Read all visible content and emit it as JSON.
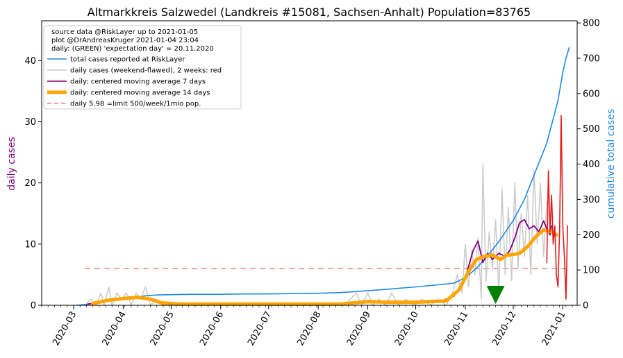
{
  "chart_data": {
    "type": "line",
    "title": "Altmarkkreis Salzwedel (Landkreis #15081, Sachsen-Anhalt) Population=83765",
    "ylabel_left": "daily cases",
    "ylabel_right": "cumulative total cases",
    "left_ylim": [
      0,
      46.5
    ],
    "right_ylim": [
      0,
      806
    ],
    "left_yticks": [
      "0",
      "10",
      "20",
      "30",
      "40"
    ],
    "right_yticks": [
      "0",
      "100",
      "200",
      "300",
      "400",
      "500",
      "600",
      "700",
      "800"
    ],
    "x_range": [
      "2020-02-10",
      "2021-01-10"
    ],
    "x_ticks": [
      "2020-03",
      "2020-04",
      "2020-05",
      "2020-06",
      "2020-07",
      "2020-08",
      "2020-09",
      "2020-10",
      "2020-11",
      "2020-12",
      "2021-01"
    ],
    "info_lines": [
      "source data @RiskLayer up to 2021-01-05",
      "plot @DrAndreasKruger 2021-01-04 23:04",
      "daily: (GREEN) 'expectation day' = 20.11.2020"
    ],
    "legend": [
      {
        "label": "total cases reported at RiskLayer",
        "color": "#1e88e5",
        "style": "line"
      },
      {
        "label": "daily cases (weekend-flawed), 2 weeks: red",
        "color": "#cccccc",
        "style": "line"
      },
      {
        "label": "daily: centered moving average 7 days",
        "color": "#800080",
        "style": "line"
      },
      {
        "label": "daily: centered moving average 14 days",
        "color": "#ffa500",
        "style": "thick"
      },
      {
        "label": "daily 5.98 =limit 500/week/1mio pop.",
        "color": "#f08080",
        "style": "dashed"
      }
    ],
    "limit_value": 5.98,
    "limit_range": [
      "2020-03-08",
      "2021-01-05"
    ],
    "expectation_day": "2020-11-20",
    "series": [
      {
        "name": "total cases reported at RiskLayer",
        "axis": "right",
        "color": "#1e88e5",
        "points": [
          [
            "2020-03-03",
            0
          ],
          [
            "2020-03-10",
            3
          ],
          [
            "2020-03-17",
            8
          ],
          [
            "2020-03-24",
            14
          ],
          [
            "2020-04-01",
            18
          ],
          [
            "2020-04-08",
            22
          ],
          [
            "2020-04-15",
            27
          ],
          [
            "2020-04-22",
            29
          ],
          [
            "2020-05-01",
            30
          ],
          [
            "2020-05-15",
            31
          ],
          [
            "2020-06-01",
            31
          ],
          [
            "2020-06-15",
            32
          ],
          [
            "2020-07-01",
            32
          ],
          [
            "2020-07-15",
            33
          ],
          [
            "2020-08-01",
            34
          ],
          [
            "2020-08-15",
            36
          ],
          [
            "2020-09-01",
            41
          ],
          [
            "2020-09-15",
            46
          ],
          [
            "2020-10-01",
            52
          ],
          [
            "2020-10-15",
            58
          ],
          [
            "2020-10-25",
            63
          ],
          [
            "2020-11-01",
            78
          ],
          [
            "2020-11-08",
            105
          ],
          [
            "2020-11-15",
            140
          ],
          [
            "2020-11-22",
            180
          ],
          [
            "2020-12-01",
            240
          ],
          [
            "2020-12-08",
            300
          ],
          [
            "2020-12-15",
            380
          ],
          [
            "2020-12-22",
            460
          ],
          [
            "2020-12-29",
            580
          ],
          [
            "2021-01-01",
            660
          ],
          [
            "2021-01-03",
            700
          ],
          [
            "2021-01-05",
            730
          ]
        ]
      },
      {
        "name": "daily cases (weekend-flawed), 2 weeks: red",
        "axis": "left",
        "color": "#cccccc",
        "points": [
          [
            "2020-03-08",
            0
          ],
          [
            "2020-03-12",
            1
          ],
          [
            "2020-03-15",
            0
          ],
          [
            "2020-03-18",
            2
          ],
          [
            "2020-03-20",
            0
          ],
          [
            "2020-03-23",
            3
          ],
          [
            "2020-03-25",
            0
          ],
          [
            "2020-03-28",
            2
          ],
          [
            "2020-03-31",
            1
          ],
          [
            "2020-04-03",
            2
          ],
          [
            "2020-04-06",
            0
          ],
          [
            "2020-04-09",
            2
          ],
          [
            "2020-04-12",
            1
          ],
          [
            "2020-04-15",
            3
          ],
          [
            "2020-04-18",
            0
          ],
          [
            "2020-04-22",
            1
          ],
          [
            "2020-04-26",
            0
          ],
          [
            "2020-05-05",
            0
          ],
          [
            "2020-08-18",
            0
          ],
          [
            "2020-08-21",
            1
          ],
          [
            "2020-08-25",
            2
          ],
          [
            "2020-08-28",
            0
          ],
          [
            "2020-09-01",
            2
          ],
          [
            "2020-09-04",
            0
          ],
          [
            "2020-09-08",
            1
          ],
          [
            "2020-09-12",
            0
          ],
          [
            "2020-09-16",
            2
          ],
          [
            "2020-09-20",
            0
          ],
          [
            "2020-09-25",
            1
          ],
          [
            "2020-09-30",
            0
          ],
          [
            "2020-10-05",
            1
          ],
          [
            "2020-10-10",
            0
          ],
          [
            "2020-10-15",
            1
          ],
          [
            "2020-10-20",
            0
          ],
          [
            "2020-10-24",
            2
          ],
          [
            "2020-10-27",
            5
          ],
          [
            "2020-10-30",
            2
          ],
          [
            "2020-11-01",
            10
          ],
          [
            "2020-11-03",
            3
          ],
          [
            "2020-11-05",
            9
          ],
          [
            "2020-11-07",
            5
          ],
          [
            "2020-11-09",
            11
          ],
          [
            "2020-11-11",
            1
          ],
          [
            "2020-11-12",
            23
          ],
          [
            "2020-11-14",
            4
          ],
          [
            "2020-11-16",
            12
          ],
          [
            "2020-11-18",
            6
          ],
          [
            "2020-11-20",
            14
          ],
          [
            "2020-11-22",
            2
          ],
          [
            "2020-11-24",
            19
          ],
          [
            "2020-11-26",
            5
          ],
          [
            "2020-11-28",
            16
          ],
          [
            "2020-11-30",
            4
          ],
          [
            "2020-12-02",
            20
          ],
          [
            "2020-12-04",
            6
          ],
          [
            "2020-12-06",
            15
          ],
          [
            "2020-12-08",
            8
          ],
          [
            "2020-12-10",
            18
          ],
          [
            "2020-12-12",
            5
          ],
          [
            "2020-12-14",
            22
          ],
          [
            "2020-12-16",
            10
          ],
          [
            "2020-12-18",
            20
          ],
          [
            "2020-12-20",
            8
          ],
          [
            "2020-12-22",
            17
          ]
        ]
      },
      {
        "name": "daily cases, last 2 weeks",
        "axis": "left",
        "color": "#e41a1c",
        "points": [
          [
            "2020-12-22",
            7
          ],
          [
            "2020-12-23",
            22
          ],
          [
            "2020-12-24",
            12
          ],
          [
            "2020-12-25",
            18
          ],
          [
            "2020-12-26",
            10
          ],
          [
            "2020-12-27",
            13
          ],
          [
            "2020-12-28",
            5
          ],
          [
            "2020-12-29",
            3
          ],
          [
            "2020-12-30",
            12
          ],
          [
            "2020-12-31",
            31
          ],
          [
            "2021-01-01",
            13
          ],
          [
            "2021-01-02",
            8
          ],
          [
            "2021-01-03",
            1
          ],
          [
            "2021-01-04",
            13
          ]
        ]
      },
      {
        "name": "daily: centered moving average 7 days",
        "axis": "left",
        "color": "#800080",
        "points": [
          [
            "2020-03-10",
            0.2
          ],
          [
            "2020-03-20",
            0.6
          ],
          [
            "2020-03-28",
            0.9
          ],
          [
            "2020-04-05",
            1.1
          ],
          [
            "2020-04-12",
            1.3
          ],
          [
            "2020-04-18",
            1.0
          ],
          [
            "2020-04-25",
            0.3
          ],
          [
            "2020-05-01",
            0.1
          ],
          [
            "2020-08-15",
            0.1
          ],
          [
            "2020-09-01",
            0.7
          ],
          [
            "2020-09-15",
            0.4
          ],
          [
            "2020-10-01",
            0.5
          ],
          [
            "2020-10-15",
            0.5
          ],
          [
            "2020-10-25",
            1.5
          ],
          [
            "2020-11-01",
            4.5
          ],
          [
            "2020-11-06",
            9
          ],
          [
            "2020-11-09",
            10.5
          ],
          [
            "2020-11-12",
            7
          ],
          [
            "2020-11-15",
            8.5
          ],
          [
            "2020-11-18",
            7.5
          ],
          [
            "2020-11-22",
            8.5
          ],
          [
            "2020-11-26",
            8
          ],
          [
            "2020-11-29",
            9
          ],
          [
            "2020-12-02",
            11
          ],
          [
            "2020-12-05",
            13.5
          ],
          [
            "2020-12-08",
            14
          ],
          [
            "2020-12-11",
            12.5
          ],
          [
            "2020-12-14",
            13
          ],
          [
            "2020-12-17",
            12
          ],
          [
            "2020-12-20",
            13.8
          ],
          [
            "2020-12-22",
            12.5
          ],
          [
            "2020-12-24",
            11.5
          ],
          [
            "2020-12-25",
            13
          ]
        ]
      },
      {
        "name": "daily: centered moving average 14 days",
        "axis": "left",
        "color": "#ffa500",
        "points": [
          [
            "2020-03-13",
            0.3
          ],
          [
            "2020-03-22",
            0.8
          ],
          [
            "2020-04-01",
            1.1
          ],
          [
            "2020-04-10",
            1.3
          ],
          [
            "2020-04-18",
            1.0
          ],
          [
            "2020-04-25",
            0.4
          ],
          [
            "2020-05-05",
            0.2
          ],
          [
            "2020-08-15",
            0.2
          ],
          [
            "2020-09-01",
            0.6
          ],
          [
            "2020-09-15",
            0.5
          ],
          [
            "2020-10-01",
            0.5
          ],
          [
            "2020-10-20",
            0.7
          ],
          [
            "2020-10-28",
            2.5
          ],
          [
            "2020-11-03",
            5.5
          ],
          [
            "2020-11-08",
            7.5
          ],
          [
            "2020-11-13",
            8.0
          ],
          [
            "2020-11-18",
            8.2
          ],
          [
            "2020-11-23",
            7.5
          ],
          [
            "2020-11-27",
            8.2
          ],
          [
            "2020-12-01",
            8.3
          ],
          [
            "2020-12-05",
            8.5
          ],
          [
            "2020-12-10",
            9.6
          ],
          [
            "2020-12-15",
            11.2
          ],
          [
            "2020-12-20",
            12.3
          ],
          [
            "2020-12-25",
            12.0
          ],
          [
            "2020-12-28",
            11.5
          ]
        ]
      }
    ]
  }
}
